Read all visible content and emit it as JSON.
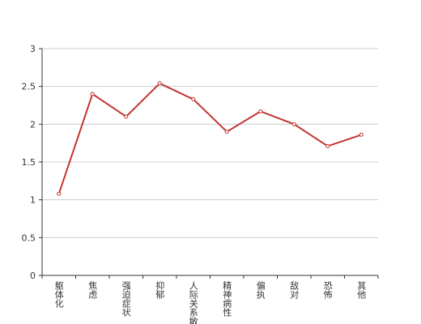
{
  "chart_data": {
    "type": "line",
    "categories": [
      "躯体化",
      "焦虑",
      "强迫症状",
      "抑郁",
      "人际关系敏感",
      "精神病性",
      "偏执",
      "敌对",
      "恐怖",
      "其他"
    ],
    "series": [
      {
        "color": "#c23531",
        "values": [
          1.08,
          2.4,
          2.1,
          2.54,
          2.33,
          1.9,
          2.17,
          2.0,
          1.71,
          1.86
        ]
      }
    ],
    "ylim": [
      0,
      3
    ],
    "yticks": [
      0,
      0.5,
      1,
      1.5,
      2,
      2.5,
      3
    ],
    "grid": true
  }
}
